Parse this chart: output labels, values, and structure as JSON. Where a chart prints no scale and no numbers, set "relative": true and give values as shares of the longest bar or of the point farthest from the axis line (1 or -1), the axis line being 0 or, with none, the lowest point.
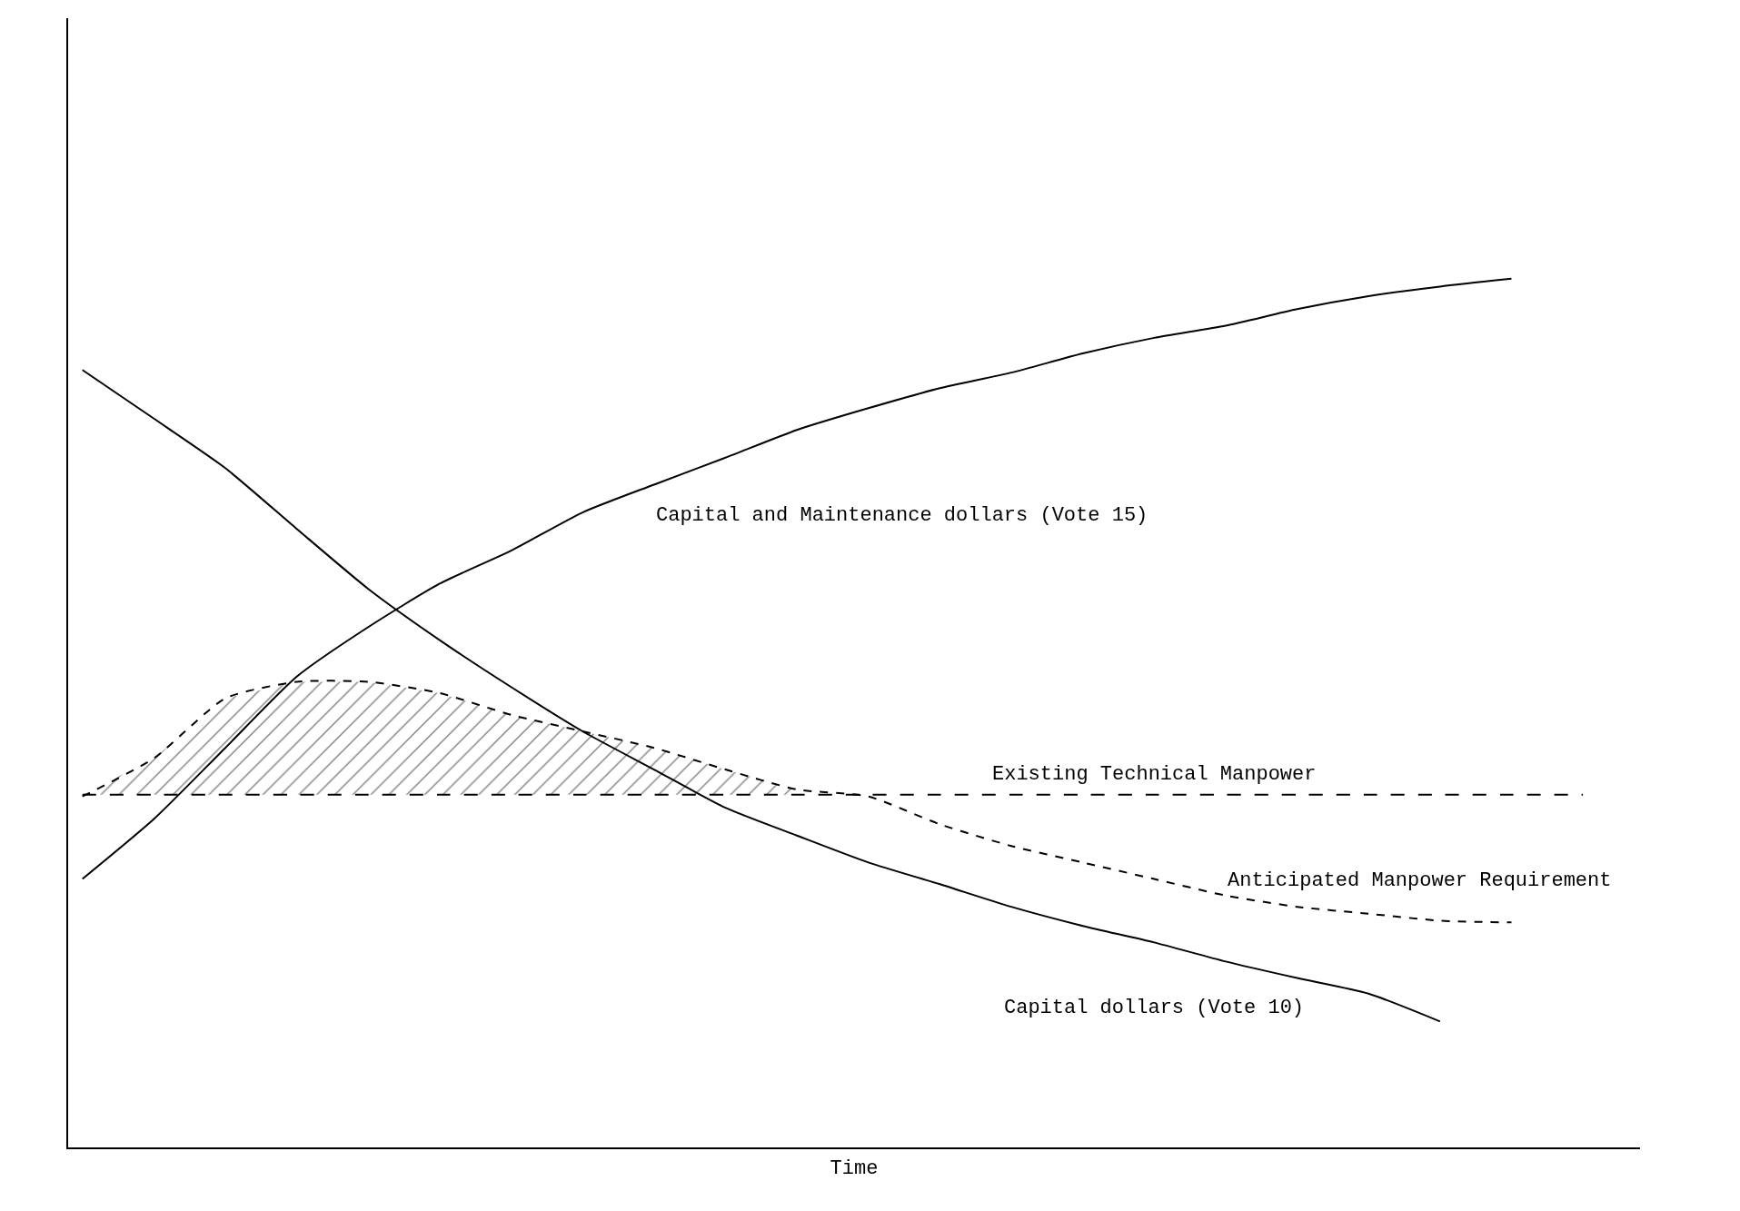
{
  "chart_data": {
    "type": "line",
    "relative": true,
    "xlabel": "Time",
    "categories": [
      null,
      null,
      null,
      null,
      null,
      null,
      null,
      null,
      null,
      null,
      null,
      null,
      null,
      null,
      null,
      null,
      null,
      null,
      null,
      null,
      null,
      null
    ],
    "series": [
      {
        "name": "Capital and Maintenance dollars (Vote 15)",
        "color": "#000000",
        "line_style": "solid",
        "values": [
          0.309,
          0.378,
          0.46,
          0.542,
          0.599,
          0.649,
          0.687,
          0.731,
          0.763,
          0.794,
          0.826,
          0.851,
          0.874,
          0.892,
          0.914,
          0.932,
          0.946,
          0.965,
          0.98,
          0.991,
          1.0,
          null
        ]
      },
      {
        "name": "Capital dollars (Vote 10)",
        "color": "#000000",
        "line_style": "solid",
        "values": [
          0.895,
          0.839,
          0.782,
          0.712,
          0.643,
          0.584,
          0.53,
          0.479,
          0.435,
          0.391,
          0.359,
          0.328,
          0.303,
          0.277,
          0.255,
          0.236,
          0.214,
          0.195,
          0.177,
          0.145,
          null,
          null
        ]
      },
      {
        "name": "Existing Technical Manpower",
        "color": "#000000",
        "line_style": "dashed",
        "values": [
          0.406,
          0.406,
          0.406,
          0.406,
          0.406,
          0.406,
          0.406,
          0.406,
          0.406,
          0.406,
          0.406,
          0.406,
          0.406,
          0.406,
          0.406,
          0.406,
          0.406,
          0.406,
          0.406,
          0.406,
          0.406,
          0.406
        ]
      },
      {
        "name": "Anticipated Manpower Requirement",
        "color": "#000000",
        "line_style": "dotted",
        "values": [
          0.404,
          0.448,
          0.517,
          0.536,
          0.536,
          0.523,
          0.498,
          0.479,
          0.46,
          0.435,
          0.412,
          0.404,
          0.372,
          0.347,
          0.328,
          0.309,
          0.29,
          0.277,
          0.269,
          0.261,
          0.259,
          null
        ],
        "lower": [
          0.406,
          0.406,
          0.406,
          0.406,
          0.406,
          0.406,
          0.406,
          0.406,
          0.406,
          0.406,
          0.406,
          null,
          null,
          null,
          null,
          null,
          null,
          null,
          null,
          null,
          null,
          null
        ],
        "upper": [
          0.406,
          0.448,
          0.517,
          0.536,
          0.536,
          0.523,
          0.498,
          0.479,
          0.46,
          0.435,
          0.412,
          null,
          null,
          null,
          null,
          null,
          null,
          null,
          null,
          null,
          null,
          null
        ]
      }
    ],
    "marker": "none",
    "legend": false
  }
}
